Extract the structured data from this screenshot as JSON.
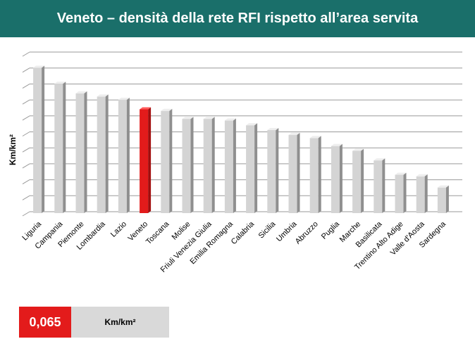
{
  "header": {
    "title": "Veneto – densità della rete RFI rispetto all’area servita"
  },
  "colors": {
    "header_bg": "#1a6f6a",
    "bar_default": "#d4d4d4",
    "bar_highlight": "#e31b1b",
    "unit_box_bg": "#d9d9d9"
  },
  "chart_data": {
    "type": "bar",
    "title": "",
    "ylabel": "Km/km²",
    "xlabel": "",
    "ylim": [
      0,
      0.1
    ],
    "y_ticks_labeled": false,
    "grid": true,
    "style": "3d",
    "categories": [
      "Liguria",
      "Campania",
      "Piemonte",
      "Lombardia",
      "Lazio",
      "Veneto",
      "Toscana",
      "Molise",
      "Friuli Venezia Giulia",
      "Emilia Romagna",
      "Calabria",
      "Sicilia",
      "Umbria",
      "Abruzzo",
      "Puglia",
      "Marche",
      "Basilicata",
      "Trentino Alto Adige",
      "Valle d'Aosta",
      "Sardegna"
    ],
    "values": [
      0.091,
      0.081,
      0.075,
      0.073,
      0.071,
      0.065,
      0.064,
      0.059,
      0.059,
      0.058,
      0.055,
      0.052,
      0.049,
      0.047,
      0.042,
      0.039,
      0.033,
      0.024,
      0.023,
      0.016
    ],
    "highlight": "Veneto"
  },
  "summary": {
    "value": "0,065",
    "unit": "Km/km²"
  }
}
